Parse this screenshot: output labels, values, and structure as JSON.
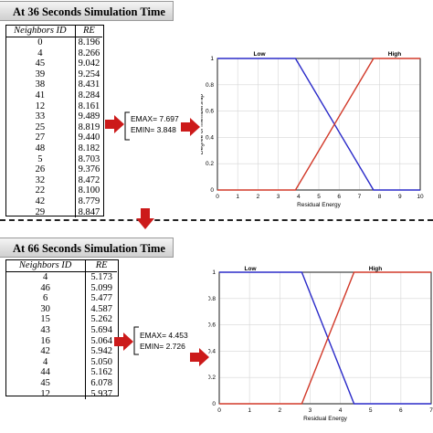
{
  "top": {
    "title": "At 36 Seconds Simulation Time",
    "headers": [
      "Neighbors ID",
      "RE"
    ],
    "rows": [
      [
        "0",
        "8.196"
      ],
      [
        "4",
        "8.266"
      ],
      [
        "45",
        "9.042"
      ],
      [
        "39",
        "9.254"
      ],
      [
        "38",
        "8.431"
      ],
      [
        "41",
        "8.284"
      ],
      [
        "12",
        "8.161"
      ],
      [
        "33",
        "9.489"
      ],
      [
        "25",
        "8.819"
      ],
      [
        "27",
        "9.440"
      ],
      [
        "48",
        "8.182"
      ],
      [
        "5",
        "8.703"
      ],
      [
        "26",
        "9.376"
      ],
      [
        "32",
        "8.472"
      ],
      [
        "22",
        "8.100"
      ],
      [
        "42",
        "8.779"
      ],
      [
        "29",
        "8.847"
      ]
    ],
    "emax": "EMAX= 7.697",
    "emin": "EMIN= 3.848"
  },
  "bottom": {
    "title": "At 66 Seconds Simulation Time",
    "headers": [
      "Neighbors ID",
      "RE"
    ],
    "rows": [
      [
        "4",
        "5.173"
      ],
      [
        "46",
        "5.099"
      ],
      [
        "6",
        "5.477"
      ],
      [
        "30",
        "4.587"
      ],
      [
        "15",
        "5.262"
      ],
      [
        "43",
        "5.694"
      ],
      [
        "16",
        "5.064"
      ],
      [
        "42",
        "5.942"
      ],
      [
        "4",
        "5.050"
      ],
      [
        "44",
        "5.162"
      ],
      [
        "45",
        "6.078"
      ],
      [
        "12",
        "5.937"
      ]
    ],
    "emax": "EMAX= 4.453",
    "emin": "EMIN= 2.726"
  },
  "chart_data": [
    {
      "type": "line",
      "xlabel": "Residual Energy",
      "ylabel": "Degree of membership",
      "xlim": [
        0,
        10
      ],
      "ylim": [
        0,
        1
      ],
      "xticks": [
        "0",
        "1",
        "2",
        "3",
        "4",
        "5",
        "6",
        "7",
        "8",
        "9",
        "10"
      ],
      "yticks": [
        "0",
        "0.2",
        "0.4",
        "0.6",
        "0.8",
        "1"
      ],
      "series": [
        {
          "name": "Low",
          "color": "#2b2bc9",
          "x": [
            0,
            3.848,
            7.697,
            10
          ],
          "y": [
            1,
            1,
            0,
            0
          ]
        },
        {
          "name": "High",
          "color": "#d23a2a",
          "x": [
            0,
            3.848,
            7.697,
            10
          ],
          "y": [
            0,
            0,
            1,
            1
          ]
        }
      ]
    },
    {
      "type": "line",
      "xlabel": "Residual Energy",
      "ylabel": "Degree of membership",
      "xlim": [
        0,
        7
      ],
      "ylim": [
        0,
        1
      ],
      "xticks": [
        "0",
        "1",
        "2",
        "3",
        "4",
        "5",
        "6",
        "7"
      ],
      "yticks": [
        "0",
        "0.2",
        "0.4",
        "0.6",
        "0.8",
        "1"
      ],
      "series": [
        {
          "name": "Low",
          "color": "#2b2bc9",
          "x": [
            0,
            2.726,
            4.453,
            7
          ],
          "y": [
            1,
            1,
            0,
            0
          ]
        },
        {
          "name": "High",
          "color": "#d23a2a",
          "x": [
            0,
            2.726,
            4.453,
            7
          ],
          "y": [
            0,
            0,
            1,
            1
          ]
        }
      ]
    }
  ]
}
